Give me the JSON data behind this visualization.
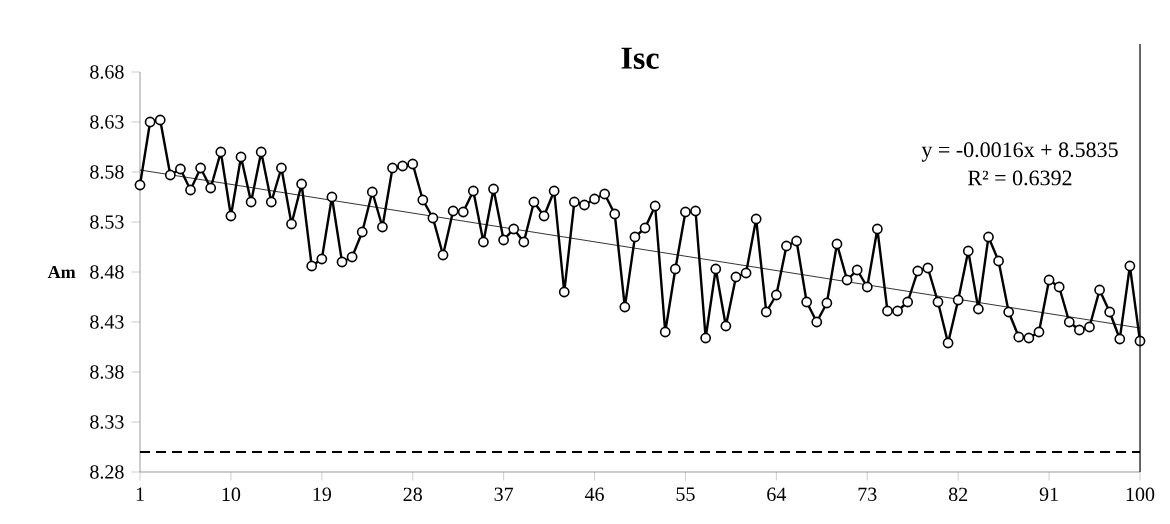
{
  "chart_data": {
    "type": "line",
    "title": "Isc",
    "ylabel": "Am",
    "x": [
      1,
      2,
      3,
      4,
      5,
      6,
      7,
      8,
      9,
      10,
      11,
      12,
      13,
      14,
      15,
      16,
      17,
      18,
      19,
      20,
      21,
      22,
      23,
      24,
      25,
      26,
      27,
      28,
      29,
      30,
      31,
      32,
      33,
      34,
      35,
      36,
      37,
      38,
      39,
      40,
      41,
      42,
      43,
      44,
      45,
      46,
      47,
      48,
      49,
      50,
      51,
      52,
      53,
      54,
      55,
      56,
      57,
      58,
      59,
      60,
      61,
      62,
      63,
      64,
      65,
      66,
      67,
      68,
      69,
      70,
      71,
      72,
      73,
      74,
      75,
      76,
      77,
      78,
      79,
      80,
      81,
      82,
      83,
      84,
      85,
      86,
      87,
      88,
      89,
      90,
      91,
      92,
      93,
      94,
      95,
      96,
      97,
      98,
      99,
      100
    ],
    "series": [
      {
        "color": "#000000",
        "marker": "circle",
        "values": [
          8.567,
          8.63,
          8.632,
          8.577,
          8.583,
          8.562,
          8.584,
          8.564,
          8.6,
          8.536,
          8.595,
          8.55,
          8.6,
          8.55,
          8.584,
          8.528,
          8.568,
          8.486,
          8.493,
          8.555,
          8.49,
          8.495,
          8.52,
          8.56,
          8.525,
          8.584,
          8.586,
          8.588,
          8.552,
          8.534,
          8.497,
          8.541,
          8.54,
          8.561,
          8.51,
          8.563,
          8.512,
          8.523,
          8.51,
          8.55,
          8.536,
          8.561,
          8.46,
          8.55,
          8.547,
          8.553,
          8.558,
          8.538,
          8.445,
          8.515,
          8.524,
          8.546,
          8.42,
          8.483,
          8.54,
          8.541,
          8.414,
          8.483,
          8.426,
          8.475,
          8.479,
          8.533,
          8.44,
          8.457,
          8.506,
          8.511,
          8.45,
          8.43,
          8.449,
          8.508,
          8.472,
          8.482,
          8.465,
          8.523,
          8.441,
          8.441,
          8.45,
          8.481,
          8.484,
          8.45,
          8.409,
          8.452,
          8.501,
          8.443,
          8.515,
          8.491,
          8.44,
          8.415,
          8.414,
          8.42,
          8.472,
          8.465,
          8.43,
          8.422,
          8.425,
          8.462,
          8.44,
          8.413,
          8.486,
          8.411
        ]
      },
      {
        "type": "line",
        "color": "#000000",
        "marker": "none",
        "x": [
          1,
          100
        ],
        "values": [
          8.582,
          8.424
        ]
      }
    ],
    "xlim": [
      1,
      100
    ],
    "xticks": [
      1,
      10,
      19,
      28,
      37,
      46,
      55,
      64,
      73,
      82,
      91,
      100
    ],
    "ylim": [
      8.28,
      8.68
    ],
    "yticks": [
      8.28,
      8.33,
      8.38,
      8.43,
      8.48,
      8.53,
      8.58,
      8.63,
      8.68
    ],
    "ref_lines": [
      {
        "axis": "y",
        "value": 8.3,
        "line_style": "dashed",
        "color": "#000000"
      }
    ],
    "annotations": [
      "y = -0.0016x + 8.5835",
      "R² = 0.6392"
    ]
  }
}
